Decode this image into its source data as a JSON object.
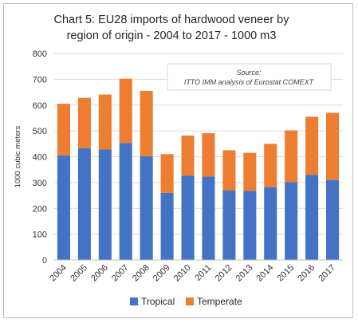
{
  "chart_data": {
    "type": "bar",
    "stacked": true,
    "title_lines": [
      "Chart 5: EU28 imports of hardwood veneer by",
      "region of origin - 2004 to 2017 - 1000 m3"
    ],
    "ylabel": "1000 cubic meters",
    "ylim": [
      0,
      800
    ],
    "yticks": [
      0,
      100,
      200,
      300,
      400,
      500,
      600,
      700,
      800
    ],
    "grid": true,
    "legend_position": "bottom",
    "source_lines": [
      "Source:",
      "ITTO IMM analysis of Eurostat COMEXT"
    ],
    "categories": [
      "2004",
      "2005",
      "2006",
      "2007",
      "2008",
      "2009",
      "2010",
      "2011",
      "2012",
      "2013",
      "2014",
      "2015",
      "2016",
      "2017"
    ],
    "series": [
      {
        "name": "Tropical",
        "color": "#4472C4",
        "values": [
          405,
          433,
          428,
          453,
          402,
          260,
          327,
          323,
          270,
          268,
          282,
          302,
          330,
          310
        ]
      },
      {
        "name": "Temperate",
        "color": "#ED7D31",
        "values": [
          200,
          195,
          213,
          249,
          253,
          150,
          155,
          168,
          155,
          147,
          168,
          200,
          225,
          260
        ]
      }
    ]
  }
}
